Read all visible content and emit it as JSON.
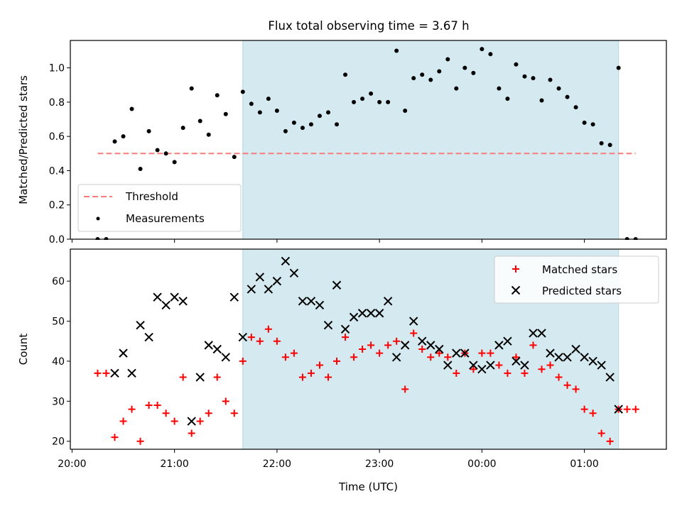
{
  "title": "Flux total observing time = 3.67 h",
  "chart_data": [
    {
      "type": "scatter",
      "ylabel": "Matched/Predicted stars",
      "xlabel": "",
      "ylim": [
        0,
        1.16
      ],
      "xlim": [
        "19:59",
        "01:48"
      ],
      "yticks": [
        0.0,
        0.2,
        0.4,
        0.6,
        0.8,
        1.0
      ],
      "ytick_labels": [
        "0.0",
        "0.2",
        "0.4",
        "0.6",
        "0.8",
        "1.0"
      ],
      "x_axis_format": "HH:MM",
      "shaded_region": {
        "from": "21:40",
        "to": "01:20",
        "color": "#d4eaf0"
      },
      "legend": {
        "placement": "lower-left",
        "entries": [
          "Threshold",
          "Measurements"
        ]
      },
      "series": [
        {
          "name": "Threshold",
          "kind": "dashed-line",
          "color": "#f87c7c",
          "x": [
            "20:15",
            "01:30"
          ],
          "y": [
            0.5,
            0.5
          ]
        },
        {
          "name": "Measurements",
          "kind": "dot",
          "color": "#000000",
          "x": [
            "20:15",
            "20:20",
            "20:25",
            "20:30",
            "20:35",
            "20:40",
            "20:45",
            "20:50",
            "20:55",
            "21:00",
            "21:05",
            "21:10",
            "21:15",
            "21:20",
            "21:25",
            "21:30",
            "21:35",
            "21:40",
            "21:45",
            "21:50",
            "21:55",
            "22:00",
            "22:05",
            "22:10",
            "22:15",
            "22:20",
            "22:25",
            "22:30",
            "22:35",
            "22:40",
            "22:45",
            "22:50",
            "22:55",
            "23:00",
            "23:05",
            "23:10",
            "23:15",
            "23:20",
            "23:25",
            "23:30",
            "23:35",
            "23:40",
            "23:45",
            "23:50",
            "23:55",
            "00:00",
            "00:05",
            "00:10",
            "00:15",
            "00:20",
            "00:25",
            "00:30",
            "00:35",
            "00:40",
            "00:45",
            "00:50",
            "00:55",
            "01:00",
            "01:05",
            "01:10",
            "01:15",
            "01:20",
            "01:25",
            "01:30"
          ],
          "y": [
            0.0,
            0.0,
            0.57,
            0.6,
            0.76,
            0.41,
            0.63,
            0.52,
            0.5,
            0.45,
            0.65,
            0.88,
            0.69,
            0.61,
            0.84,
            0.73,
            0.48,
            0.86,
            0.79,
            0.74,
            0.82,
            0.75,
            0.63,
            0.68,
            0.65,
            0.67,
            0.72,
            0.74,
            0.67,
            0.96,
            0.8,
            0.82,
            0.85,
            0.8,
            0.8,
            1.1,
            0.75,
            0.94,
            0.96,
            0.93,
            0.98,
            1.05,
            0.88,
            1.0,
            0.97,
            1.11,
            1.08,
            0.88,
            0.82,
            1.02,
            0.95,
            0.94,
            0.81,
            0.93,
            0.88,
            0.83,
            0.77,
            0.68,
            0.67,
            0.56,
            0.55,
            1.0,
            0.0,
            0.0
          ]
        }
      ]
    },
    {
      "type": "scatter",
      "ylabel": "Count",
      "xlabel": "Time (UTC)",
      "ylim": [
        18,
        68
      ],
      "xlim": [
        "19:59",
        "01:48"
      ],
      "yticks": [
        20,
        30,
        40,
        50,
        60
      ],
      "ytick_labels": [
        "20",
        "30",
        "40",
        "50",
        "60"
      ],
      "xticks": [
        "20:00",
        "21:00",
        "22:00",
        "23:00",
        "00:00",
        "01:00"
      ],
      "xtick_labels": [
        "20:00",
        "21:00",
        "22:00",
        "23:00",
        "00:00",
        "01:00"
      ],
      "x_axis_format": "HH:MM",
      "shaded_region": {
        "from": "21:40",
        "to": "01:20",
        "color": "#d4eaf0"
      },
      "legend": {
        "placement": "top-right",
        "entries": [
          "Matched stars",
          "Predicted stars"
        ]
      },
      "series": [
        {
          "name": "Matched stars",
          "marker": "plus",
          "color": "#ff0000",
          "x": [
            "20:15",
            "20:20",
            "20:25",
            "20:30",
            "20:35",
            "20:40",
            "20:45",
            "20:50",
            "20:55",
            "21:00",
            "21:05",
            "21:10",
            "21:15",
            "21:20",
            "21:25",
            "21:30",
            "21:35",
            "21:40",
            "21:45",
            "21:50",
            "21:55",
            "22:00",
            "22:05",
            "22:10",
            "22:15",
            "22:20",
            "22:25",
            "22:30",
            "22:35",
            "22:40",
            "22:45",
            "22:50",
            "22:55",
            "23:00",
            "23:05",
            "23:10",
            "23:15",
            "23:20",
            "23:25",
            "23:30",
            "23:35",
            "23:40",
            "23:45",
            "23:50",
            "23:55",
            "00:00",
            "00:05",
            "00:10",
            "00:15",
            "00:20",
            "00:25",
            "00:30",
            "00:35",
            "00:40",
            "00:45",
            "00:50",
            "00:55",
            "01:00",
            "01:05",
            "01:10",
            "01:15",
            "01:20",
            "01:25",
            "01:30"
          ],
          "y": [
            37,
            37,
            21,
            25,
            28,
            20,
            29,
            29,
            27,
            25,
            36,
            22,
            25,
            27,
            36,
            30,
            27,
            40,
            46,
            45,
            48,
            45,
            41,
            42,
            36,
            37,
            39,
            36,
            40,
            46,
            41,
            43,
            44,
            42,
            44,
            45,
            33,
            47,
            43,
            41,
            42,
            41,
            37,
            42,
            38,
            42,
            42,
            39,
            37,
            41,
            37,
            44,
            38,
            39,
            36,
            34,
            33,
            28,
            27,
            22,
            20,
            28,
            28,
            28
          ]
        },
        {
          "name": "Predicted stars",
          "marker": "x",
          "color": "#000000",
          "x": [
            "20:25",
            "20:30",
            "20:35",
            "20:40",
            "20:45",
            "20:50",
            "20:55",
            "21:00",
            "21:05",
            "21:10",
            "21:15",
            "21:20",
            "21:25",
            "21:30",
            "21:35",
            "21:40",
            "21:45",
            "21:50",
            "21:55",
            "22:00",
            "22:05",
            "22:10",
            "22:15",
            "22:20",
            "22:25",
            "22:30",
            "22:35",
            "22:40",
            "22:45",
            "22:50",
            "22:55",
            "23:00",
            "23:05",
            "23:10",
            "23:15",
            "23:20",
            "23:25",
            "23:30",
            "23:35",
            "23:40",
            "23:45",
            "23:50",
            "23:55",
            "00:00",
            "00:05",
            "00:10",
            "00:15",
            "00:20",
            "00:25",
            "00:30",
            "00:35",
            "00:40",
            "00:45",
            "00:50",
            "00:55",
            "01:00",
            "01:05",
            "01:10",
            "01:15",
            "01:20"
          ],
          "y": [
            37,
            42,
            37,
            49,
            46,
            56,
            54,
            56,
            55,
            25,
            36,
            44,
            43,
            41,
            56,
            46,
            58,
            61,
            58,
            60,
            65,
            62,
            55,
            55,
            54,
            49,
            59,
            48,
            51,
            52,
            52,
            52,
            55,
            41,
            44,
            50,
            45,
            44,
            43,
            39,
            42,
            42,
            39,
            38,
            39,
            44,
            45,
            40,
            39,
            47,
            47,
            42,
            41,
            41,
            43,
            41,
            40,
            39,
            36,
            28
          ]
        }
      ]
    }
  ]
}
